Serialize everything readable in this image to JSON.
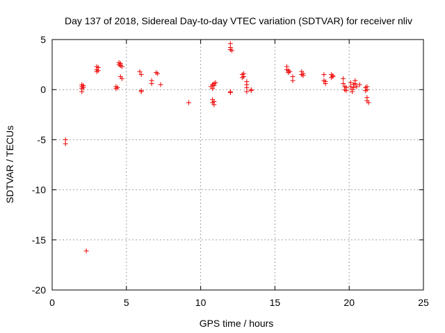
{
  "chart_data": {
    "type": "scatter",
    "title": "Day 137 of 2018, Sidereal Day-to-day VTEC variation (SDTVAR) for receiver nliv",
    "xlabel": "GPS time / hours",
    "ylabel": "SDTVAR / TECUs",
    "xlim": [
      0,
      25
    ],
    "ylim": [
      -20,
      5
    ],
    "xticks": [
      0,
      5,
      10,
      15,
      20,
      25
    ],
    "yticks": [
      -20,
      -15,
      -10,
      -5,
      0,
      5
    ],
    "grid": true,
    "marker": "+",
    "color": "#ee0000",
    "series": [
      {
        "name": "SDTVAR",
        "points": [
          [
            0.9,
            -5.0
          ],
          [
            0.9,
            -5.4
          ],
          [
            2.0,
            0.5
          ],
          [
            2.0,
            0.3
          ],
          [
            2.0,
            0.1
          ],
          [
            2.0,
            -0.2
          ],
          [
            2.1,
            0.4
          ],
          [
            2.1,
            0.2
          ],
          [
            2.3,
            -16.1
          ],
          [
            3.0,
            2.3
          ],
          [
            3.0,
            2.0
          ],
          [
            3.0,
            1.8
          ],
          [
            3.1,
            2.2
          ],
          [
            3.1,
            1.9
          ],
          [
            4.3,
            0.3
          ],
          [
            4.3,
            0.1
          ],
          [
            4.4,
            0.2
          ],
          [
            4.5,
            2.7
          ],
          [
            4.5,
            2.5
          ],
          [
            4.6,
            2.4
          ],
          [
            4.6,
            2.6
          ],
          [
            4.7,
            2.3
          ],
          [
            4.6,
            1.3
          ],
          [
            4.7,
            1.1
          ],
          [
            5.9,
            1.8
          ],
          [
            6.0,
            1.5
          ],
          [
            6.0,
            -0.1
          ],
          [
            6.0,
            -0.2
          ],
          [
            6.7,
            0.9
          ],
          [
            6.7,
            0.6
          ],
          [
            7.0,
            1.7
          ],
          [
            7.1,
            1.6
          ],
          [
            7.3,
            0.5
          ],
          [
            9.2,
            -1.3
          ],
          [
            10.7,
            0.3
          ],
          [
            10.8,
            0.5
          ],
          [
            10.8,
            0.1
          ],
          [
            10.9,
            0.6
          ],
          [
            10.9,
            0.4
          ],
          [
            11.0,
            0.7
          ],
          [
            10.8,
            -1.0
          ],
          [
            10.8,
            -1.3
          ],
          [
            10.9,
            -1.2
          ],
          [
            10.9,
            -1.5
          ],
          [
            12.0,
            4.6
          ],
          [
            12.0,
            4.2
          ],
          [
            12.0,
            4.0
          ],
          [
            12.1,
            3.9
          ],
          [
            12.0,
            -0.2
          ],
          [
            12.0,
            -0.3
          ],
          [
            12.8,
            1.5
          ],
          [
            12.8,
            1.2
          ],
          [
            12.9,
            1.6
          ],
          [
            12.9,
            1.3
          ],
          [
            13.1,
            0.8
          ],
          [
            13.1,
            0.5
          ],
          [
            13.1,
            0.2
          ],
          [
            13.1,
            -0.2
          ],
          [
            13.4,
            0.0
          ],
          [
            13.4,
            -0.1
          ],
          [
            15.8,
            2.3
          ],
          [
            15.8,
            2.0
          ],
          [
            15.9,
            1.9
          ],
          [
            15.9,
            1.7
          ],
          [
            16.0,
            1.8
          ],
          [
            16.2,
            1.3
          ],
          [
            16.2,
            0.9
          ],
          [
            16.8,
            1.8
          ],
          [
            16.8,
            1.5
          ],
          [
            16.9,
            1.6
          ],
          [
            16.9,
            1.4
          ],
          [
            18.3,
            1.5
          ],
          [
            18.3,
            0.9
          ],
          [
            18.4,
            0.6
          ],
          [
            18.4,
            0.8
          ],
          [
            18.8,
            1.5
          ],
          [
            18.8,
            1.2
          ],
          [
            18.9,
            1.4
          ],
          [
            18.9,
            1.3
          ],
          [
            19.6,
            1.1
          ],
          [
            19.6,
            0.6
          ],
          [
            19.7,
            0.3
          ],
          [
            19.7,
            0.0
          ],
          [
            19.8,
            0.2
          ],
          [
            19.8,
            -0.1
          ],
          [
            20.1,
            0.7
          ],
          [
            20.1,
            0.3
          ],
          [
            20.2,
            0.0
          ],
          [
            20.2,
            -0.2
          ],
          [
            20.3,
            0.5
          ],
          [
            20.3,
            0.2
          ],
          [
            20.4,
            0.9
          ],
          [
            20.4,
            0.6
          ],
          [
            20.5,
            0.3
          ],
          [
            20.7,
            0.5
          ],
          [
            21.1,
            0.2
          ],
          [
            21.1,
            -0.1
          ],
          [
            21.2,
            0.3
          ],
          [
            21.2,
            0.0
          ],
          [
            21.2,
            -0.8
          ],
          [
            21.2,
            -1.1
          ],
          [
            21.3,
            -1.3
          ]
        ]
      }
    ]
  }
}
